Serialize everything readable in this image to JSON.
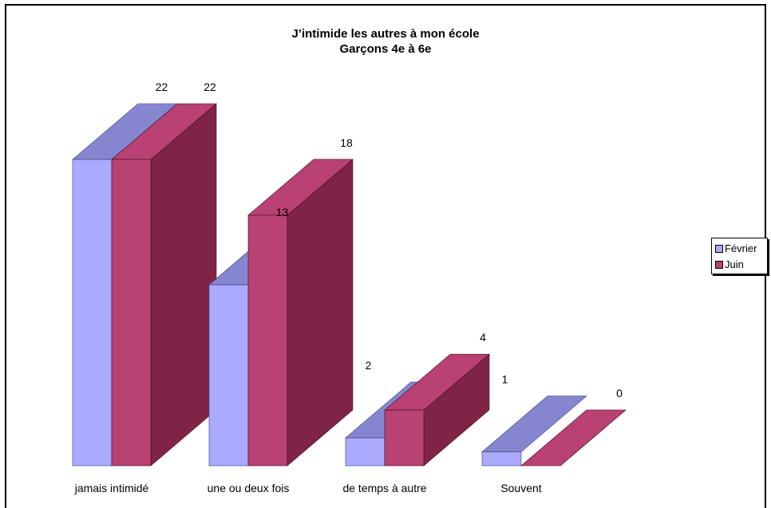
{
  "chart_data": {
    "type": "bar",
    "title": "J’intimide les autres à mon école",
    "subtitle": "Garçons 4e à 6e",
    "categories": [
      "jamais intimidé",
      "une ou deux fois",
      "de temps à autre",
      "Souvent"
    ],
    "series": [
      {
        "name": "Février",
        "values": [
          22,
          13,
          2,
          1
        ],
        "color": "#aaaaff",
        "top_color": "#8686d0"
      },
      {
        "name": "Juin",
        "values": [
          22,
          18,
          4,
          0
        ],
        "color": "#b94173",
        "side_color": "#802447"
      }
    ],
    "ylim": [
      0,
      22
    ],
    "legend_position": "right",
    "grid": false
  }
}
